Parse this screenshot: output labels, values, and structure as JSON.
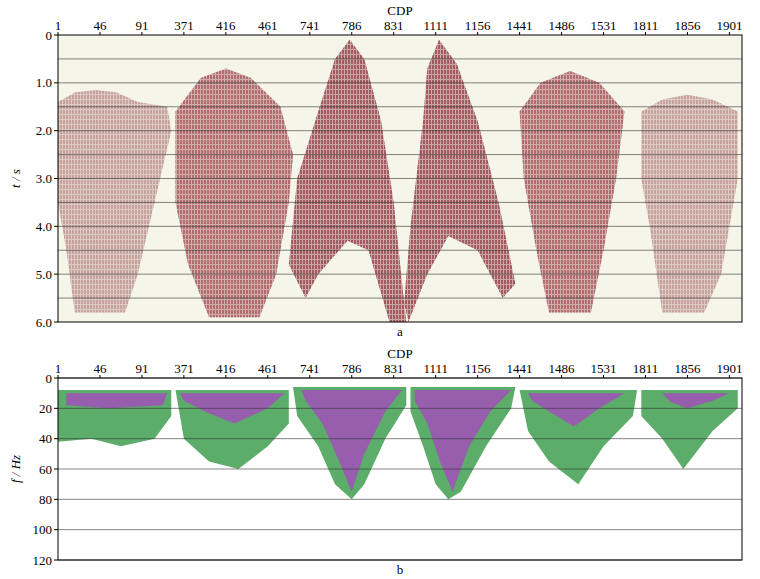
{
  "chart_data": [
    {
      "type": "seismic_section",
      "title": "a",
      "x_label": "CDP",
      "y_label": "t / s",
      "categories": [
        "1",
        "46",
        "91",
        "371",
        "416",
        "461",
        "741",
        "786",
        "831",
        "1111",
        "1156",
        "1441",
        "1486",
        "1531",
        "1811",
        "1856",
        "1901"
      ],
      "xlim": [
        0,
        16.3
      ],
      "ylim": [
        0,
        6
      ],
      "yticks": [
        0,
        {
          "value": 1,
          "label": "1.0"
        },
        {
          "value": 2,
          "label": "2.0"
        },
        {
          "value": 3,
          "label": "3.0"
        },
        {
          "value": 4,
          "label": "4.0"
        },
        {
          "value": 5,
          "label": "5.0"
        },
        {
          "value": 6,
          "label": "6.0"
        }
      ],
      "ygrid": [
        0.5,
        1,
        1.5,
        2,
        2.5,
        3,
        3.5,
        4,
        4.5,
        5,
        5.5
      ],
      "grid": true,
      "regions": [
        {
          "color": "#b07a7a",
          "x": [
            0.0,
            0.4,
            0.9,
            1.4,
            1.9,
            2.6,
            2.7,
            2.3,
            1.9,
            1.6,
            0.4,
            0.2,
            0.0
          ],
          "y": [
            1.4,
            1.2,
            1.15,
            1.2,
            1.4,
            1.5,
            2.0,
            3.5,
            5.0,
            5.8,
            5.8,
            4.5,
            3.5
          ]
        },
        {
          "color": "#8e2a35",
          "x": [
            2.8,
            3.4,
            4.0,
            4.6,
            5.3,
            5.6,
            5.5,
            5.2,
            4.8,
            3.6,
            3.1,
            2.8
          ],
          "y": [
            1.6,
            0.9,
            0.7,
            0.9,
            1.5,
            2.5,
            3.5,
            5.0,
            5.9,
            5.9,
            4.8,
            3.5
          ]
        },
        {
          "color": "#7a1020",
          "x": [
            6.95,
            7.3,
            7.7,
            8.0,
            8.2,
            8.3,
            7.9,
            7.4,
            6.9,
            6.2,
            5.9,
            5.5,
            5.7,
            6.2,
            6.6
          ],
          "y": [
            0.1,
            0.5,
            1.8,
            3.5,
            5.2,
            6.0,
            6.0,
            4.5,
            4.3,
            5.0,
            5.5,
            4.8,
            3.0,
            1.6,
            0.5
          ]
        },
        {
          "color": "#7a1020",
          "x": [
            9.08,
            9.5,
            10.0,
            10.5,
            10.9,
            10.6,
            10.0,
            9.3,
            8.8,
            8.35,
            8.25,
            8.4,
            8.7,
            8.8
          ],
          "y": [
            0.1,
            0.6,
            1.8,
            3.5,
            5.2,
            5.5,
            4.5,
            4.2,
            5.0,
            6.0,
            5.6,
            4.0,
            1.8,
            0.7
          ]
        },
        {
          "color": "#8e2a35",
          "x": [
            11.0,
            11.5,
            12.2,
            12.9,
            13.5,
            13.3,
            13.0,
            12.7,
            11.7,
            11.4,
            11.1
          ],
          "y": [
            1.6,
            1.0,
            0.75,
            1.0,
            1.6,
            3.0,
            4.5,
            5.8,
            5.8,
            4.5,
            3.0
          ]
        },
        {
          "color": "#b07a7a",
          "x": [
            13.9,
            14.4,
            15.0,
            15.6,
            16.2,
            16.2,
            15.8,
            15.4,
            14.4,
            14.1,
            13.9
          ],
          "y": [
            1.6,
            1.35,
            1.25,
            1.35,
            1.6,
            3.0,
            5.0,
            5.8,
            5.8,
            4.0,
            3.0
          ]
        }
      ]
    },
    {
      "type": "time_frequency",
      "title": "b",
      "x_label": "CDP",
      "y_label": "f / Hz",
      "categories": [
        "1",
        "46",
        "91",
        "371",
        "416",
        "461",
        "741",
        "786",
        "831",
        "1111",
        "1156",
        "1441",
        "1486",
        "1531",
        "1811",
        "1856",
        "1901"
      ],
      "xlim": [
        0,
        16.3
      ],
      "ylim": [
        0,
        120
      ],
      "yticks": [
        0,
        20,
        40,
        60,
        80,
        100,
        120
      ],
      "grid": true,
      "regions": [
        {
          "color": "#3f9f4f",
          "x": [
            0,
            2.7,
            2.7,
            2.3,
            1.5,
            0.8,
            0
          ],
          "y": [
            8,
            8,
            25,
            40,
            45,
            40,
            42
          ]
        },
        {
          "color": "#a050b8",
          "x": [
            0.2,
            2.6,
            2.5,
            1.2,
            0.2
          ],
          "y": [
            10,
            10,
            18,
            20,
            18
          ]
        },
        {
          "color": "#3f9f4f",
          "x": [
            2.8,
            5.5,
            5.5,
            5.0,
            4.3,
            3.6,
            3.0
          ],
          "y": [
            8,
            8,
            30,
            45,
            60,
            55,
            40
          ]
        },
        {
          "color": "#a050b8",
          "x": [
            2.9,
            5.4,
            5.0,
            4.2,
            3.5,
            3.0
          ],
          "y": [
            10,
            10,
            20,
            30,
            22,
            15
          ]
        },
        {
          "color": "#3f9f4f",
          "x": [
            5.6,
            8.3,
            8.3,
            7.8,
            7.3,
            7.0,
            6.6,
            6.2,
            5.7
          ],
          "y": [
            6,
            6,
            18,
            40,
            70,
            80,
            70,
            45,
            25
          ]
        },
        {
          "color": "#a050b8",
          "x": [
            5.8,
            8.2,
            7.8,
            7.3,
            7.0,
            6.7,
            6.3,
            5.9
          ],
          "y": [
            8,
            8,
            22,
            50,
            75,
            55,
            30,
            15
          ]
        },
        {
          "color": "#3f9f4f",
          "x": [
            8.4,
            10.9,
            10.8,
            10.2,
            9.6,
            9.3,
            9.0,
            8.7,
            8.4
          ],
          "y": [
            6,
            6,
            20,
            45,
            75,
            80,
            70,
            45,
            22
          ]
        },
        {
          "color": "#a050b8",
          "x": [
            8.5,
            10.8,
            10.3,
            9.8,
            9.4,
            9.1,
            8.8,
            8.5
          ],
          "y": [
            8,
            8,
            22,
            45,
            75,
            55,
            30,
            15
          ]
        },
        {
          "color": "#3f9f4f",
          "x": [
            11.0,
            13.8,
            13.7,
            13.0,
            12.4,
            11.7,
            11.2
          ],
          "y": [
            8,
            8,
            25,
            45,
            70,
            55,
            35
          ]
        },
        {
          "color": "#a050b8",
          "x": [
            11.2,
            13.5,
            12.9,
            12.3,
            11.7,
            11.3
          ],
          "y": [
            10,
            10,
            20,
            32,
            22,
            15
          ]
        },
        {
          "color": "#3f9f4f",
          "x": [
            13.9,
            16.2,
            16.2,
            15.6,
            14.9,
            14.4,
            13.9
          ],
          "y": [
            8,
            8,
            20,
            35,
            60,
            40,
            25
          ]
        },
        {
          "color": "#a050b8",
          "x": [
            14.4,
            16.0,
            15.6,
            15.0,
            14.6
          ],
          "y": [
            10,
            10,
            15,
            20,
            16
          ]
        }
      ]
    }
  ]
}
